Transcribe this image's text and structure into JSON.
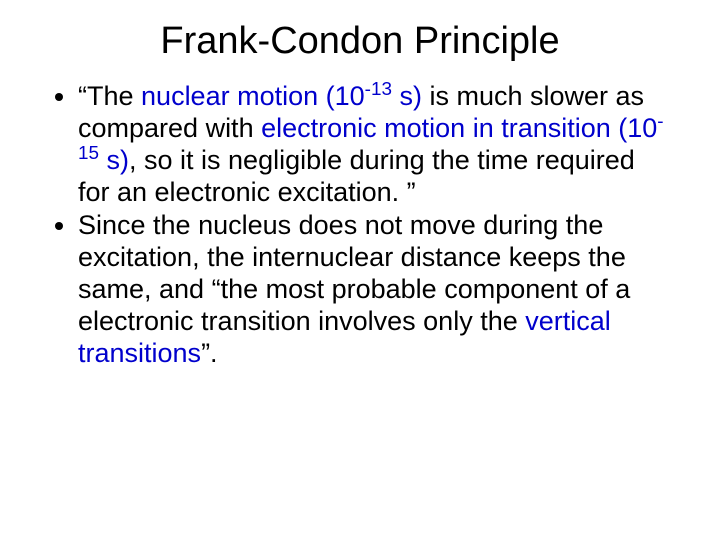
{
  "slide": {
    "title": "Frank-Condon Principle",
    "title_color": "#000000",
    "title_fontsize": 38,
    "body_fontsize": 27,
    "body_color": "#000000",
    "highlight_color": "#0000cc",
    "background_color": "#ffffff",
    "bullets": [
      {
        "segments": [
          {
            "text": "“The ",
            "hl": false
          },
          {
            "text": "nuclear motion (10",
            "hl": true
          },
          {
            "text": "-13",
            "hl": true,
            "sup": true
          },
          {
            "text": " s)",
            "hl": true
          },
          {
            "text": " is much slower as compared with ",
            "hl": false
          },
          {
            "text": "electronic motion in transition (10",
            "hl": true
          },
          {
            "text": "-15",
            "hl": true,
            "sup": true
          },
          {
            "text": " s)",
            "hl": true
          },
          {
            "text": ", so it is negligible during the time required for an electronic excitation. ”",
            "hl": false
          }
        ]
      },
      {
        "segments": [
          {
            "text": "Since the nucleus does not move during the excitation, the internuclear distance keeps the same, and “the most probable component of a electronic transition involves only the ",
            "hl": false
          },
          {
            "text": "vertical transitions",
            "hl": true
          },
          {
            "text": "”.",
            "hl": false
          }
        ]
      }
    ]
  }
}
